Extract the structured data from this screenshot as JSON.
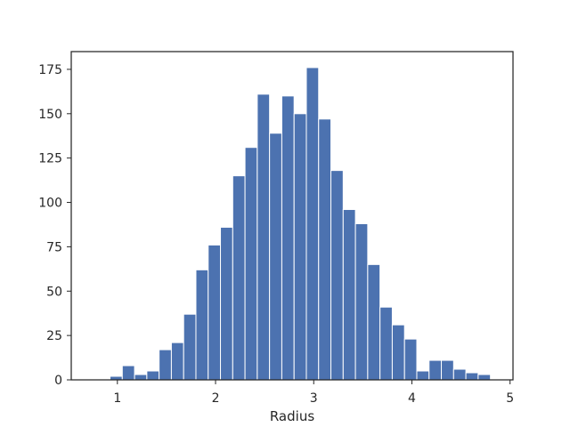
{
  "chart_data": {
    "type": "bar",
    "title": "",
    "xlabel": "Radius",
    "ylabel": "",
    "bar_color": "#4c72b0",
    "grid": false,
    "xlim": [
      0.53,
      5.03
    ],
    "ylim": [
      0,
      185
    ],
    "xticks": [
      1,
      2,
      3,
      4,
      5
    ],
    "yticks": [
      0,
      25,
      50,
      75,
      100,
      125,
      150,
      175
    ],
    "bin_edges": [
      0.8,
      0.925,
      1.05,
      1.175,
      1.3,
      1.425,
      1.55,
      1.675,
      1.8,
      1.925,
      2.05,
      2.175,
      2.3,
      2.425,
      2.55,
      2.675,
      2.8,
      2.925,
      3.05,
      3.175,
      3.3,
      3.425,
      3.55,
      3.675,
      3.8,
      3.925,
      4.05,
      4.175,
      4.3,
      4.425,
      4.55,
      4.675,
      4.8
    ],
    "values": [
      0,
      2,
      8,
      3,
      5,
      17,
      21,
      37,
      62,
      76,
      86,
      115,
      131,
      161,
      139,
      160,
      150,
      176,
      147,
      118,
      96,
      88,
      65,
      41,
      31,
      23,
      5,
      11,
      11,
      6,
      4,
      3
    ]
  }
}
